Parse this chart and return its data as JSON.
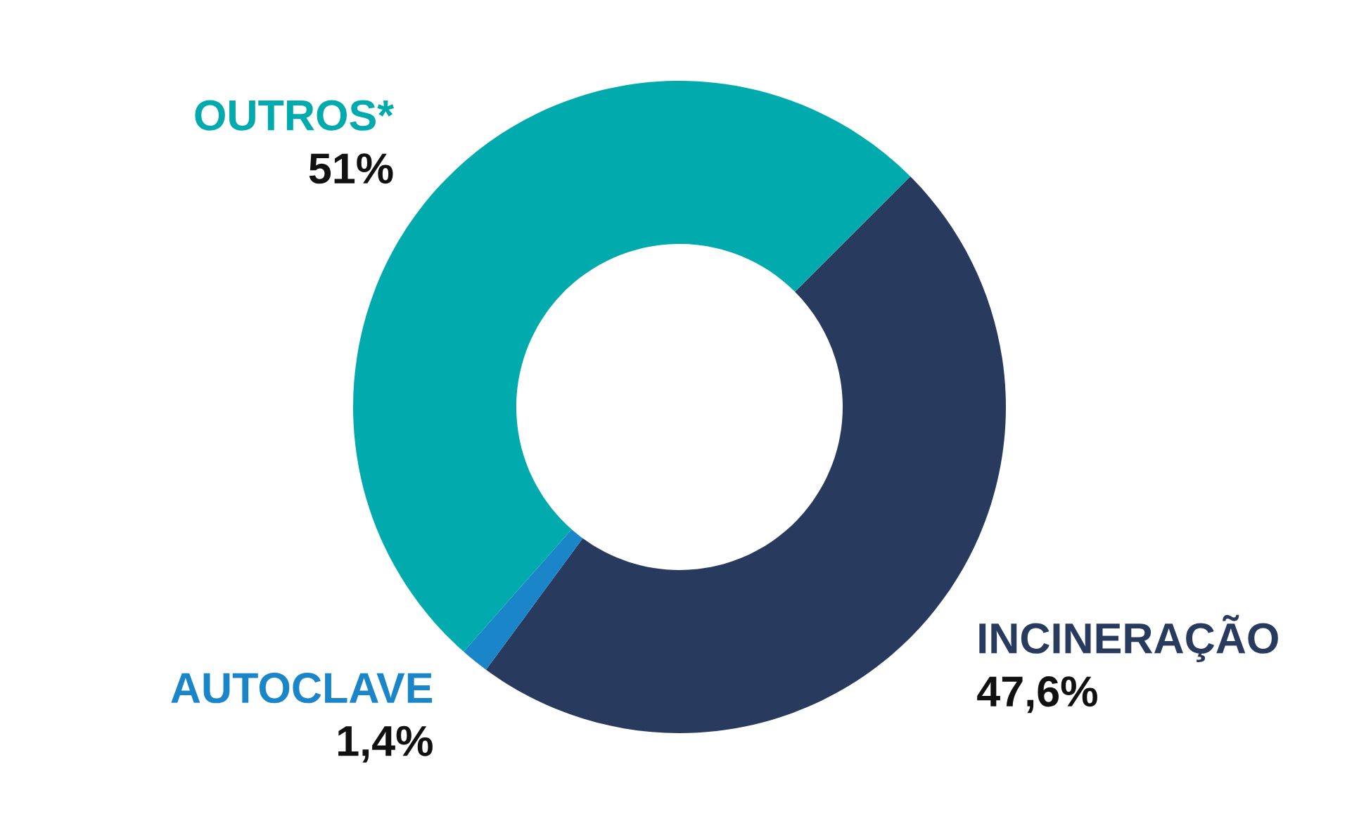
{
  "chart_data": {
    "type": "donut",
    "categories": [
      "INCINERAÇÃO",
      "AUTOCLAVE",
      "OUTROS*"
    ],
    "values": [
      47.6,
      1.4,
      51
    ],
    "value_labels": [
      "47,6%",
      "1,4%",
      "51%"
    ],
    "colors": [
      "#283a5e",
      "#1a85c8",
      "#00aaad"
    ],
    "legend": false
  }
}
